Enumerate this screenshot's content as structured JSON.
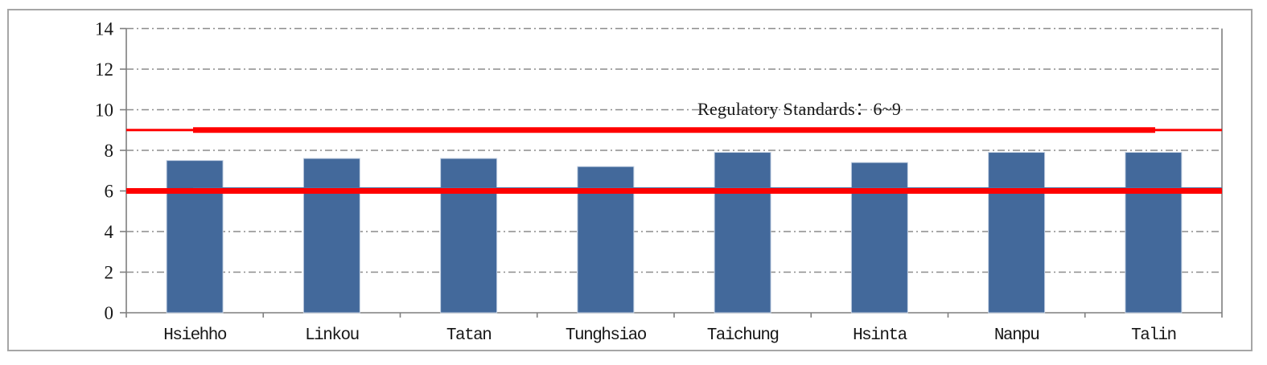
{
  "chart_data": {
    "type": "bar",
    "categories": [
      "Hsiehho",
      "Linkou",
      "Tatan",
      "Tunghsiao",
      "Taichung",
      "Hsinta",
      "Nanpu",
      "Talin"
    ],
    "values": [
      7.5,
      7.6,
      7.6,
      7.2,
      7.9,
      7.4,
      7.9,
      7.9
    ],
    "title": "",
    "xlabel": "",
    "ylabel": "",
    "ylim": [
      0,
      14
    ],
    "yticks": [
      0,
      2,
      4,
      6,
      8,
      10,
      12,
      14
    ],
    "grid": "horizontal-dash-dot",
    "legend": "none",
    "annotation": "Regulatory Standards：6~9",
    "reference_lines": [
      {
        "value": 9,
        "color": "#FF0000",
        "style": "thick"
      },
      {
        "value": 6,
        "color": "#FF0000",
        "style": "thick"
      }
    ],
    "colors": {
      "bar": "#43699B",
      "bar_border": "#C3D0E2",
      "reference": "#FF0000",
      "series_line": "#4E74A4",
      "gridline": "#8C8C8C",
      "axis": "#7F7F7F",
      "frame_border": "#A6A6A6",
      "text": "#171717"
    }
  }
}
